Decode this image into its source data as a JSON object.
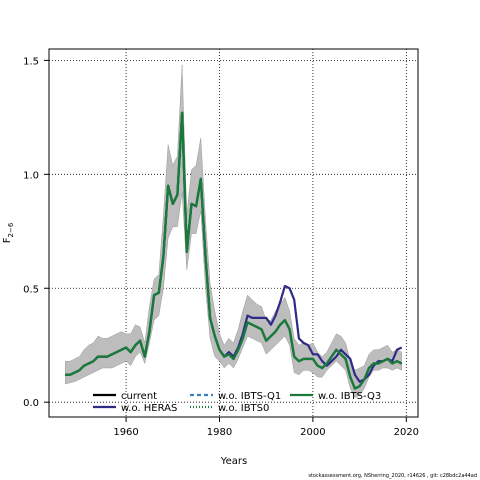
{
  "footer": "stockassessment.org, NSherring_2020, r14626 , git: c28bdc2a44ad",
  "chart_data": {
    "type": "line",
    "title": "",
    "xlabel": "Years",
    "ylabel_main": "F",
    "ylabel_sub": "2−6",
    "xlim": [
      1943.5,
      2022.5
    ],
    "ylim": [
      -0.065,
      1.55
    ],
    "xticks": [
      1960,
      1980,
      2000,
      2020
    ],
    "yticks": [
      0.0,
      0.5,
      1.0,
      1.5
    ],
    "ytick_labels": [
      "0.0",
      "0.5",
      "1.0",
      "1.5"
    ],
    "grid": true,
    "legend_position": "bottom",
    "colors": {
      "band": "#bdbdbd",
      "current": "#000000",
      "wo_heras": "#2e2a87",
      "wo_ibts_q1": "#3a7fbf",
      "wo_ibts0": "#1a7a3c",
      "wo_ibts_q3": "#1a7a3c"
    },
    "legend": [
      {
        "key": "current",
        "label": "current",
        "color": "#000000",
        "style": "solid"
      },
      {
        "key": "wo_heras",
        "label": "w.o. HERAS",
        "color": "#2e2a87",
        "style": "solid"
      },
      {
        "key": "wo_ibts_q1",
        "label": "w.o. IBTS-Q1",
        "color": "#3a7fbf",
        "style": "dashed"
      },
      {
        "key": "wo_ibts0",
        "label": "w.o. IBTS0",
        "color": "#1a7a3c",
        "style": "dotted"
      },
      {
        "key": "wo_ibts_q3",
        "label": "w.o. IBTS-Q3",
        "color": "#1a7a3c",
        "style": "solid"
      }
    ],
    "x": [
      1947,
      1948,
      1949,
      1950,
      1951,
      1952,
      1953,
      1954,
      1955,
      1956,
      1957,
      1958,
      1959,
      1960,
      1961,
      1962,
      1963,
      1964,
      1965,
      1966,
      1967,
      1968,
      1969,
      1970,
      1971,
      1972,
      1973,
      1974,
      1975,
      1976,
      1977,
      1978,
      1979,
      1980,
      1981,
      1982,
      1983,
      1984,
      1985,
      1986,
      1987,
      1988,
      1989,
      1990,
      1991,
      1992,
      1993,
      1994,
      1995,
      1996,
      1997,
      1998,
      1999,
      2000,
      2001,
      2002,
      2003,
      2004,
      2005,
      2006,
      2007,
      2008,
      2009,
      2010,
      2011,
      2012,
      2013,
      2014,
      2015,
      2016,
      2017,
      2018,
      2019
    ],
    "band_lower": [
      0.08,
      0.085,
      0.09,
      0.1,
      0.11,
      0.12,
      0.13,
      0.14,
      0.15,
      0.15,
      0.15,
      0.16,
      0.17,
      0.18,
      0.16,
      0.2,
      0.22,
      0.17,
      0.26,
      0.36,
      0.38,
      0.5,
      0.72,
      0.77,
      0.77,
      0.92,
      0.58,
      0.74,
      0.74,
      0.84,
      0.5,
      0.28,
      0.2,
      0.18,
      0.15,
      0.17,
      0.15,
      0.19,
      0.24,
      0.29,
      0.28,
      0.27,
      0.26,
      0.21,
      0.23,
      0.25,
      0.27,
      0.29,
      0.25,
      0.13,
      0.12,
      0.14,
      0.14,
      0.13,
      0.11,
      0.11,
      0.14,
      0.16,
      0.18,
      0.16,
      0.14,
      0.06,
      0.02,
      0.03,
      0.06,
      0.11,
      0.14,
      0.14,
      0.15,
      0.15,
      0.14,
      0.15,
      0.14
    ],
    "band_upper": [
      0.18,
      0.18,
      0.19,
      0.2,
      0.23,
      0.25,
      0.26,
      0.29,
      0.28,
      0.28,
      0.29,
      0.3,
      0.31,
      0.3,
      0.3,
      0.34,
      0.33,
      0.26,
      0.42,
      0.54,
      0.56,
      0.82,
      1.13,
      1.04,
      1.08,
      1.48,
      0.82,
      1.02,
      1.04,
      1.16,
      0.8,
      0.52,
      0.4,
      0.3,
      0.25,
      0.28,
      0.26,
      0.32,
      0.4,
      0.47,
      0.45,
      0.43,
      0.42,
      0.36,
      0.36,
      0.4,
      0.43,
      0.46,
      0.4,
      0.28,
      0.25,
      0.26,
      0.25,
      0.26,
      0.22,
      0.2,
      0.22,
      0.26,
      0.3,
      0.29,
      0.26,
      0.18,
      0.14,
      0.15,
      0.16,
      0.21,
      0.23,
      0.23,
      0.24,
      0.25,
      0.22,
      0.23,
      0.22
    ],
    "series": [
      {
        "key": "wo_heras",
        "name": "w.o. HERAS",
        "values": [
          0.12,
          0.12,
          0.13,
          0.14,
          0.16,
          0.17,
          0.18,
          0.2,
          0.2,
          0.2,
          0.21,
          0.22,
          0.23,
          0.24,
          0.22,
          0.25,
          0.27,
          0.2,
          0.31,
          0.47,
          0.48,
          0.64,
          0.95,
          0.87,
          0.91,
          1.27,
          0.66,
          0.87,
          0.86,
          0.98,
          0.64,
          0.37,
          0.29,
          0.23,
          0.2,
          0.22,
          0.2,
          0.24,
          0.3,
          0.38,
          0.37,
          0.37,
          0.37,
          0.37,
          0.34,
          0.38,
          0.44,
          0.51,
          0.5,
          0.45,
          0.28,
          0.26,
          0.25,
          0.21,
          0.21,
          0.18,
          0.16,
          0.18,
          0.2,
          0.23,
          0.21,
          0.19,
          0.12,
          0.09,
          0.1,
          0.12,
          0.16,
          0.18,
          0.18,
          0.19,
          0.18,
          0.23,
          0.24
        ]
      },
      {
        "key": "wo_ibts_q1",
        "name": "w.o. IBTS-Q1",
        "values": [
          0.12,
          0.12,
          0.13,
          0.14,
          0.16,
          0.17,
          0.18,
          0.2,
          0.2,
          0.2,
          0.21,
          0.22,
          0.23,
          0.24,
          0.22,
          0.25,
          0.27,
          0.2,
          0.31,
          0.47,
          0.48,
          0.64,
          0.95,
          0.87,
          0.91,
          1.27,
          0.66,
          0.87,
          0.86,
          0.98,
          0.64,
          0.37,
          0.29,
          0.23,
          0.2,
          0.21,
          0.19,
          0.23,
          0.28,
          0.35,
          0.34,
          0.33,
          0.32,
          0.27,
          0.29,
          0.31,
          0.34,
          0.36,
          0.32,
          0.2,
          0.18,
          0.19,
          0.19,
          0.19,
          0.16,
          0.15,
          0.17,
          0.2,
          0.23,
          0.21,
          0.19,
          0.11,
          0.06,
          0.07,
          0.1,
          0.15,
          0.17,
          0.17,
          0.18,
          0.19,
          0.17,
          0.18,
          0.17
        ]
      },
      {
        "key": "wo_ibts0",
        "name": "w.o. IBTS0",
        "values": [
          0.12,
          0.12,
          0.13,
          0.14,
          0.16,
          0.17,
          0.18,
          0.2,
          0.2,
          0.2,
          0.21,
          0.22,
          0.23,
          0.24,
          0.22,
          0.25,
          0.27,
          0.2,
          0.31,
          0.47,
          0.48,
          0.64,
          0.95,
          0.87,
          0.91,
          1.27,
          0.66,
          0.87,
          0.86,
          0.98,
          0.64,
          0.37,
          0.29,
          0.23,
          0.2,
          0.21,
          0.19,
          0.23,
          0.28,
          0.35,
          0.34,
          0.33,
          0.32,
          0.27,
          0.29,
          0.31,
          0.34,
          0.36,
          0.32,
          0.2,
          0.18,
          0.19,
          0.19,
          0.19,
          0.16,
          0.15,
          0.17,
          0.2,
          0.23,
          0.21,
          0.19,
          0.11,
          0.06,
          0.07,
          0.1,
          0.15,
          0.17,
          0.17,
          0.18,
          0.19,
          0.17,
          0.18,
          0.17
        ]
      },
      {
        "key": "current",
        "name": "current",
        "values": [
          0.12,
          0.12,
          0.13,
          0.14,
          0.16,
          0.17,
          0.18,
          0.2,
          0.2,
          0.2,
          0.21,
          0.22,
          0.23,
          0.24,
          0.22,
          0.25,
          0.27,
          0.2,
          0.31,
          0.47,
          0.48,
          0.64,
          0.95,
          0.87,
          0.91,
          1.27,
          0.66,
          0.87,
          0.86,
          0.98,
          0.64,
          0.37,
          0.29,
          0.23,
          0.2,
          0.21,
          0.19,
          0.23,
          0.28,
          0.35,
          0.34,
          0.33,
          0.32,
          0.27,
          0.29,
          0.31,
          0.34,
          0.36,
          0.32,
          0.2,
          0.18,
          0.19,
          0.19,
          0.19,
          0.16,
          0.15,
          0.17,
          0.2,
          0.23,
          0.21,
          0.19,
          0.11,
          0.06,
          0.07,
          0.1,
          0.15,
          0.17,
          0.17,
          0.18,
          0.19,
          0.17,
          0.18,
          0.17
        ]
      },
      {
        "key": "wo_ibts_q3",
        "name": "w.o. IBTS-Q3",
        "values": [
          0.12,
          0.12,
          0.13,
          0.14,
          0.16,
          0.17,
          0.18,
          0.2,
          0.2,
          0.2,
          0.21,
          0.22,
          0.23,
          0.24,
          0.22,
          0.25,
          0.27,
          0.2,
          0.31,
          0.47,
          0.48,
          0.64,
          0.95,
          0.87,
          0.91,
          1.27,
          0.66,
          0.87,
          0.86,
          0.98,
          0.64,
          0.37,
          0.29,
          0.23,
          0.2,
          0.21,
          0.19,
          0.23,
          0.28,
          0.35,
          0.34,
          0.33,
          0.32,
          0.27,
          0.29,
          0.31,
          0.34,
          0.36,
          0.32,
          0.2,
          0.18,
          0.19,
          0.19,
          0.19,
          0.16,
          0.15,
          0.17,
          0.2,
          0.23,
          0.21,
          0.19,
          0.11,
          0.06,
          0.07,
          0.1,
          0.15,
          0.17,
          0.17,
          0.18,
          0.19,
          0.17,
          0.18,
          0.17
        ]
      }
    ]
  }
}
